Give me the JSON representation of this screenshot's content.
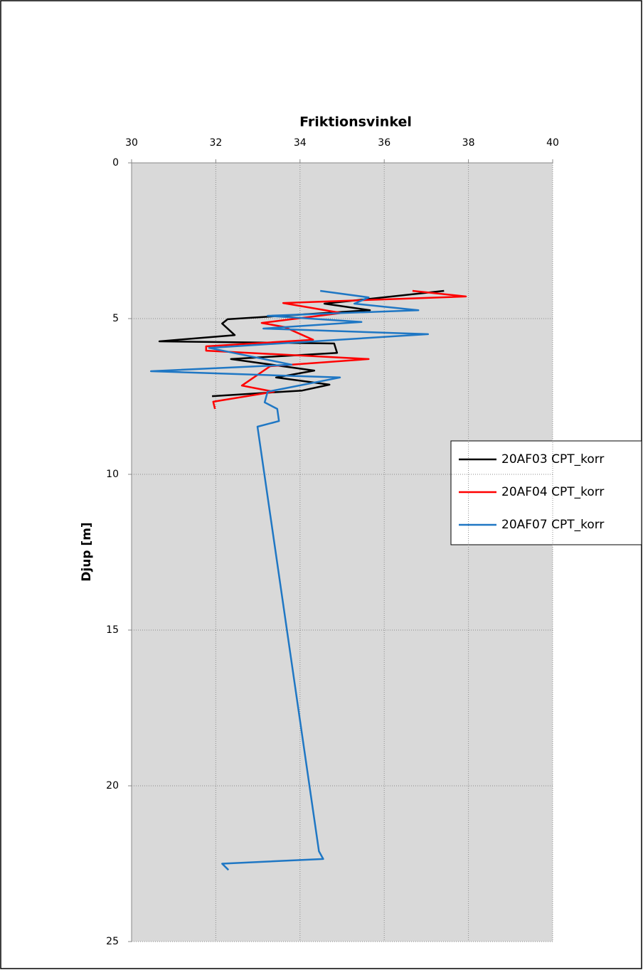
{
  "chart_data": {
    "type": "line",
    "title": "Friktionsvinkel",
    "y_label": "Djup [m]",
    "xlim": [
      30,
      40
    ],
    "xticks": [
      30,
      32,
      34,
      36,
      38,
      40
    ],
    "ylim": [
      0,
      25
    ],
    "yticks": [
      0,
      5,
      10,
      15,
      20,
      25
    ],
    "y_inverted": true,
    "x_axis_position": "top",
    "grid": true,
    "legend": "right",
    "series": [
      {
        "name": "20AF03 CPT_korr",
        "color": "#000000",
        "x": [
          37.42,
          34.58,
          35.66,
          32.28,
          32.15,
          32.45,
          30.66,
          34.81,
          34.88,
          32.36,
          34.34,
          33.43,
          34.7,
          34.05,
          31.91
        ],
        "y": [
          4.11,
          4.52,
          4.73,
          5.02,
          5.16,
          5.53,
          5.73,
          5.8,
          6.1,
          6.3,
          6.67,
          6.89,
          7.12,
          7.31,
          7.49
        ]
      },
      {
        "name": "20AF04 CPT_korr",
        "color": "#ff0000",
        "x": [
          36.67,
          37.94,
          33.6,
          34.98,
          33.09,
          33.63,
          34.31,
          31.77,
          31.77,
          35.63,
          33.29,
          32.62,
          33.38,
          31.94,
          31.98
        ],
        "y": [
          4.11,
          4.29,
          4.5,
          4.82,
          5.14,
          5.27,
          5.68,
          5.89,
          6.03,
          6.3,
          6.53,
          7.15,
          7.35,
          7.67,
          7.9
        ]
      },
      {
        "name": "20AF07 CPT_korr",
        "color": "#1f77c4",
        "x": [
          34.48,
          35.63,
          35.29,
          36.81,
          33.23,
          35.46,
          33.13,
          37.04,
          31.84,
          33.8,
          30.46,
          34.95,
          33.23,
          33.16,
          33.46,
          33.5,
          32.99,
          34.45,
          34.55,
          32.15,
          32.3
        ],
        "y": [
          4.11,
          4.32,
          4.52,
          4.73,
          4.91,
          5.11,
          5.32,
          5.5,
          5.94,
          6.48,
          6.69,
          6.89,
          7.35,
          7.69,
          7.9,
          8.29,
          8.47,
          22.1,
          22.35,
          22.5,
          22.7
        ]
      }
    ]
  }
}
